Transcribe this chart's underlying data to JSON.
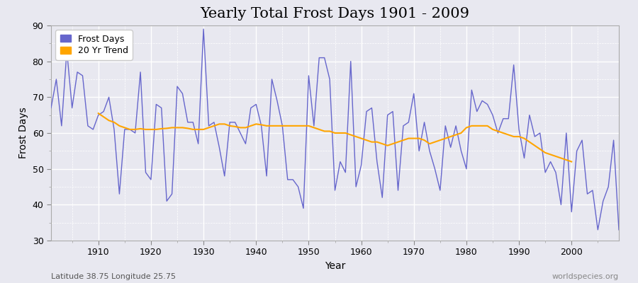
{
  "title": "Yearly Total Frost Days 1901 - 2009",
  "xlabel": "Year",
  "ylabel": "Frost Days",
  "subtitle": "Latitude 38.75 Longitude 25.75",
  "watermark": "worldspecies.org",
  "years": [
    1901,
    1902,
    1903,
    1904,
    1905,
    1906,
    1907,
    1908,
    1909,
    1910,
    1911,
    1912,
    1913,
    1914,
    1915,
    1916,
    1917,
    1918,
    1919,
    1920,
    1921,
    1922,
    1923,
    1924,
    1925,
    1926,
    1927,
    1928,
    1929,
    1930,
    1931,
    1932,
    1933,
    1934,
    1935,
    1936,
    1937,
    1938,
    1939,
    1940,
    1941,
    1942,
    1943,
    1944,
    1945,
    1946,
    1947,
    1948,
    1949,
    1950,
    1951,
    1952,
    1953,
    1954,
    1955,
    1956,
    1957,
    1958,
    1959,
    1960,
    1961,
    1962,
    1963,
    1964,
    1965,
    1966,
    1967,
    1968,
    1969,
    1970,
    1971,
    1972,
    1973,
    1974,
    1975,
    1976,
    1977,
    1978,
    1979,
    1980,
    1981,
    1982,
    1983,
    1984,
    1985,
    1986,
    1987,
    1988,
    1989,
    1990,
    1991,
    1992,
    1993,
    1994,
    1995,
    1996,
    1997,
    1998,
    1999,
    2000,
    2001,
    2002,
    2003,
    2004,
    2005,
    2006,
    2007,
    2008,
    2009
  ],
  "frost_days": [
    67,
    75,
    62,
    83,
    67,
    77,
    76,
    62,
    61,
    65,
    66,
    70,
    61,
    43,
    61,
    61,
    60,
    77,
    49,
    47,
    68,
    67,
    41,
    43,
    73,
    71,
    63,
    63,
    57,
    89,
    62,
    63,
    56,
    48,
    63,
    63,
    60,
    57,
    67,
    68,
    62,
    48,
    75,
    69,
    62,
    47,
    47,
    45,
    39,
    76,
    62,
    81,
    81,
    75,
    44,
    52,
    49,
    80,
    45,
    51,
    66,
    67,
    52,
    42,
    65,
    66,
    44,
    62,
    63,
    71,
    55,
    63,
    55,
    50,
    44,
    62,
    56,
    62,
    55,
    50,
    72,
    66,
    69,
    68,
    65,
    60,
    64,
    64,
    79,
    61,
    53,
    65,
    59,
    60,
    49,
    52,
    49,
    40,
    60,
    38,
    55,
    58,
    43,
    44,
    33,
    41,
    45,
    58,
    33
  ],
  "trend_years": [
    1910,
    1911,
    1912,
    1913,
    1914,
    1915,
    1916,
    1917,
    1918,
    1919,
    1920,
    1921,
    1922,
    1923,
    1924,
    1925,
    1926,
    1927,
    1928,
    1929,
    1930,
    1931,
    1932,
    1933,
    1934,
    1935,
    1936,
    1937,
    1938,
    1939,
    1940,
    1941,
    1942,
    1943,
    1944,
    1945,
    1946,
    1947,
    1948,
    1949,
    1950,
    1951,
    1952,
    1953,
    1954,
    1955,
    1956,
    1957,
    1958,
    1959,
    1960,
    1961,
    1962,
    1963,
    1964,
    1965,
    1966,
    1967,
    1968,
    1969,
    1970,
    1971,
    1972,
    1973,
    1974,
    1975,
    1976,
    1977,
    1978,
    1979,
    1980,
    1981,
    1982,
    1983,
    1984,
    1985,
    1986,
    1987,
    1988,
    1989,
    1990,
    1991,
    1992,
    1993,
    1994,
    1995,
    1996,
    1997,
    1998,
    1999,
    2000
  ],
  "trend_values": [
    65.5,
    64.5,
    63.5,
    63.0,
    62.0,
    61.5,
    61.0,
    61.0,
    61.2,
    61.0,
    61.0,
    61.0,
    61.2,
    61.3,
    61.5,
    61.5,
    61.5,
    61.3,
    61.0,
    61.0,
    61.0,
    61.5,
    62.0,
    62.5,
    62.5,
    62.0,
    61.8,
    61.5,
    61.5,
    62.0,
    62.5,
    62.3,
    62.0,
    62.0,
    62.0,
    62.0,
    62.0,
    62.0,
    62.0,
    62.0,
    62.0,
    61.5,
    61.0,
    60.5,
    60.5,
    60.0,
    60.0,
    60.0,
    59.5,
    59.0,
    58.5,
    58.0,
    57.5,
    57.5,
    57.0,
    56.5,
    57.0,
    57.5,
    58.0,
    58.5,
    58.5,
    58.5,
    58.0,
    57.0,
    57.5,
    58.0,
    58.5,
    59.0,
    59.5,
    60.0,
    61.5,
    62.0,
    62.0,
    62.0,
    62.0,
    61.0,
    60.5,
    60.0,
    59.5,
    59.0,
    59.0,
    58.5,
    57.5,
    56.5,
    55.5,
    54.5,
    54.0,
    53.5,
    53.0,
    52.5,
    52.0
  ],
  "line_color": "#6666cc",
  "trend_color": "#FFA500",
  "figure_bg_color": "#e8e8f0",
  "plot_bg_color": "#e8e8f0",
  "grid_color": "#ffffff",
  "grid_minor_color": "#d8d8e8",
  "ylim": [
    30,
    90
  ],
  "yticks": [
    30,
    40,
    50,
    60,
    70,
    80,
    90
  ],
  "xlim": [
    1901,
    2009
  ],
  "xticks": [
    1910,
    1920,
    1930,
    1940,
    1950,
    1960,
    1970,
    1980,
    1990,
    2000
  ],
  "title_fontsize": 15,
  "axis_label_fontsize": 10,
  "tick_fontsize": 9,
  "legend_fontsize": 9,
  "subtitle_fontsize": 8,
  "watermark_fontsize": 8
}
